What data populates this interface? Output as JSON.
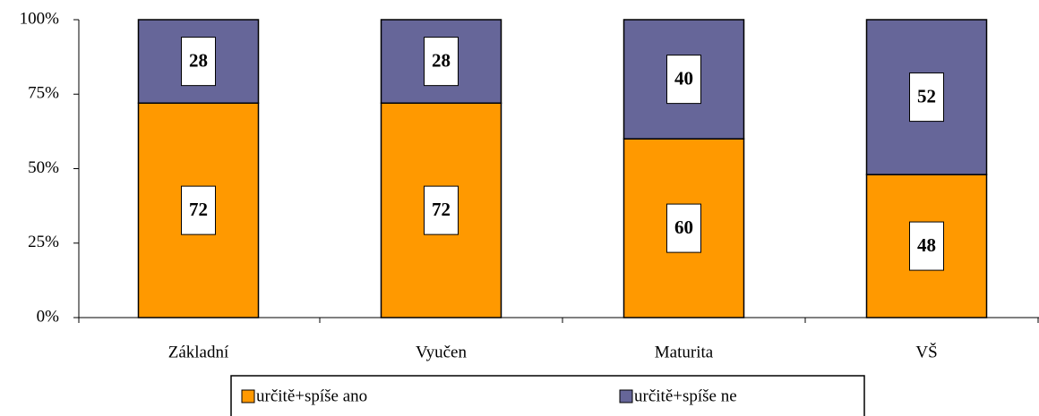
{
  "chart_data": {
    "type": "stacked_bar",
    "categories": [
      "Základní",
      "Vyučen",
      "Maturita",
      "VŠ"
    ],
    "series": [
      {
        "name": "určitě+spíše ano",
        "color": "#FF9900",
        "values": [
          72,
          72,
          60,
          48
        ]
      },
      {
        "name": "určitě+spíše ne",
        "color": "#666699",
        "values": [
          28,
          28,
          40,
          52
        ]
      }
    ],
    "ylim": [
      0,
      100
    ],
    "yticks": [
      {
        "value": 0,
        "label": "0%"
      },
      {
        "value": 25,
        "label": "25%"
      },
      {
        "value": 50,
        "label": "50%"
      },
      {
        "value": 75,
        "label": "75%"
      },
      {
        "value": 100,
        "label": "100%"
      }
    ],
    "legend": "bottom"
  }
}
